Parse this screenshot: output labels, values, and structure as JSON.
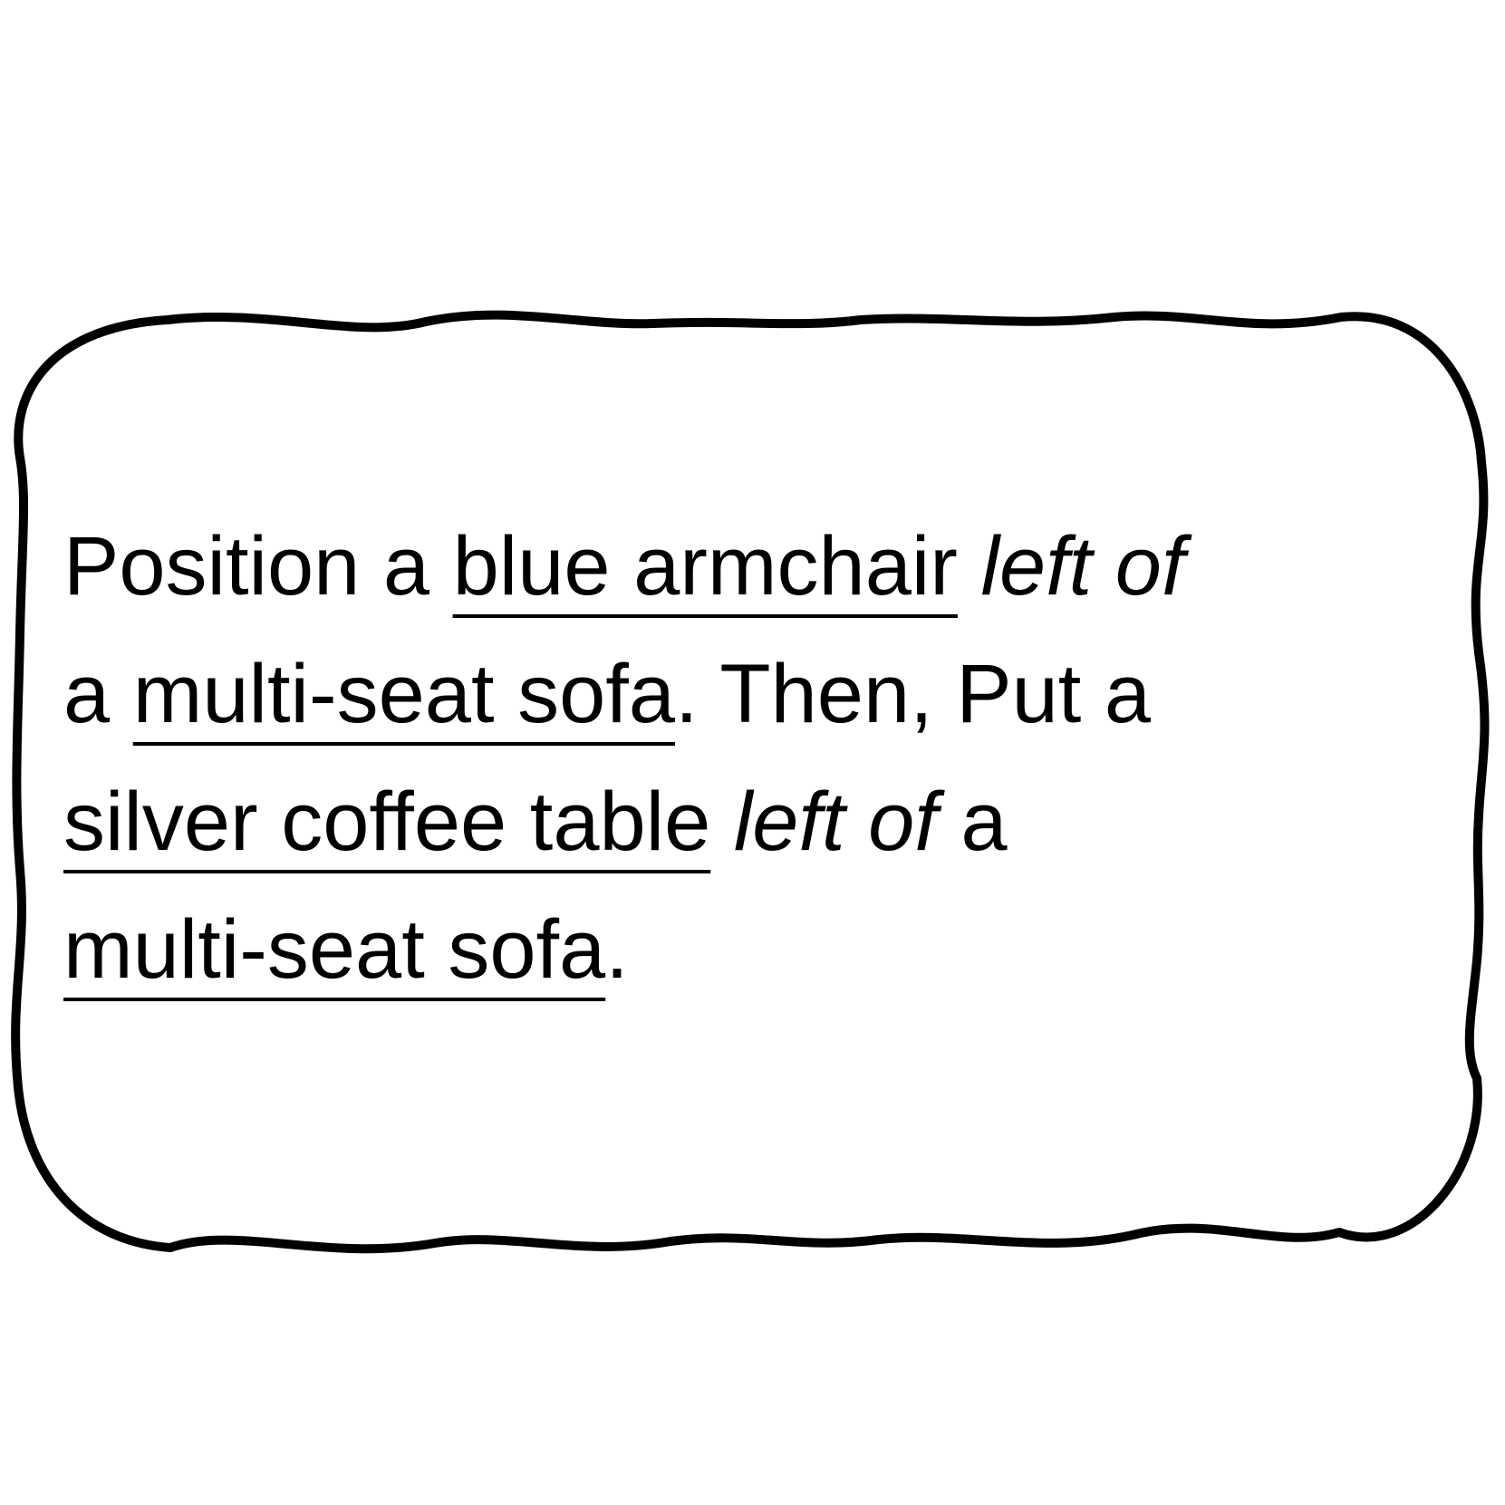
{
  "instruction": {
    "line1": {
      "prefix": "Position a ",
      "object1": "blue armchair",
      "relation1": "left of"
    },
    "line2": {
      "article": "a ",
      "anchor1": "multi-seat sofa",
      "connector": ". Then, Put a"
    },
    "line3": {
      "object2": "silver coffee table",
      "relation2": "left of",
      "article": " a"
    },
    "line4": {
      "anchor2": "multi-seat sofa",
      "end": "."
    }
  },
  "colors": {
    "text": "#000000",
    "frame": "#000000",
    "background": "#ffffff"
  }
}
